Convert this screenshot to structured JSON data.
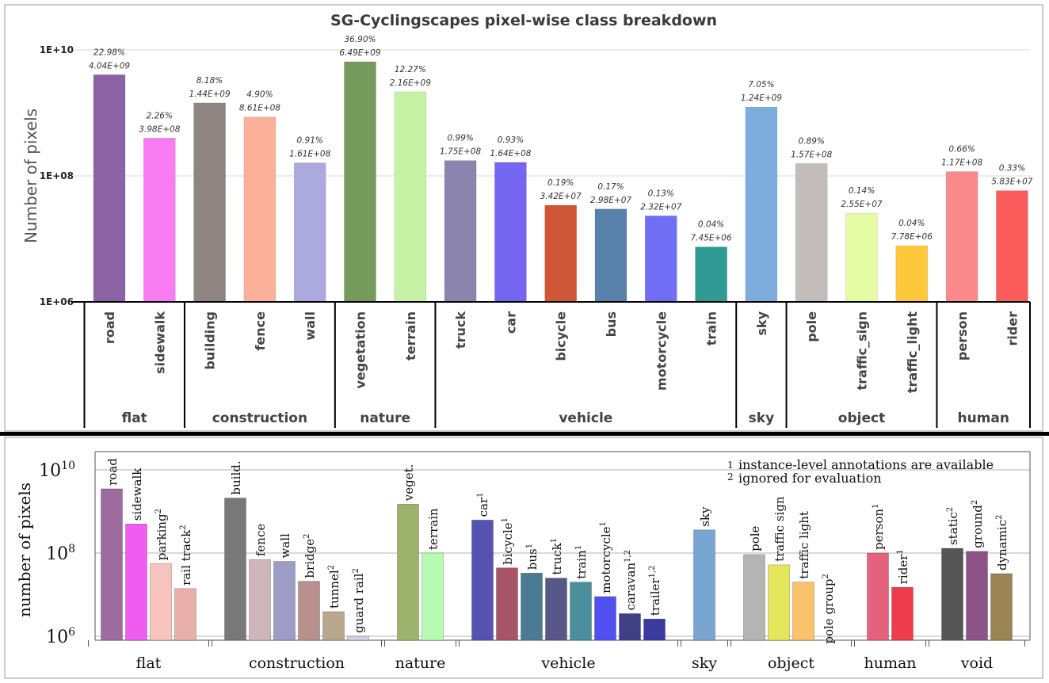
{
  "chart_data": [
    {
      "type": "bar",
      "title": "SG-Cyclingscapes pixel-wise class breakdown",
      "ylabel": "Number of pixels",
      "yscale": "log",
      "ylim": [
        1000000,
        10000000000
      ],
      "yticks": [
        {
          "value": 1000000,
          "label": "1E+06"
        },
        {
          "value": 100000000,
          "label": "1E+08"
        },
        {
          "value": 10000000000,
          "label": "1E+10"
        }
      ],
      "grid": true,
      "bars": [
        {
          "name": "road",
          "group": "flat",
          "value": 4040000000,
          "label": "4.04E+09",
          "percent": "22.98%",
          "color": "#8c64a6"
        },
        {
          "name": "sidewalk",
          "group": "flat",
          "value": 398000000,
          "label": "3.98E+08",
          "percent": "2.26%",
          "color": "#f97cf2"
        },
        {
          "name": "building",
          "group": "construction",
          "value": 1440000000,
          "label": "1.44E+09",
          "percent": "8.18%",
          "color": "#8e8583"
        },
        {
          "name": "fence",
          "group": "construction",
          "value": 861000000,
          "label": "8.61E+08",
          "percent": "4.90%",
          "color": "#fbb09a"
        },
        {
          "name": "wall",
          "group": "construction",
          "value": 161000000,
          "label": "1.61E+08",
          "percent": "0.91%",
          "color": "#aba9de"
        },
        {
          "name": "vegetation",
          "group": "nature",
          "value": 6490000000,
          "label": "6.49E+09",
          "percent": "36.90%",
          "color": "#749a5c"
        },
        {
          "name": "terrain",
          "group": "nature",
          "value": 2160000000,
          "label": "2.16E+09",
          "percent": "12.27%",
          "color": "#c6f2a6"
        },
        {
          "name": "truck",
          "group": "vehicle",
          "value": 175000000,
          "label": "1.75E+08",
          "percent": "0.99%",
          "color": "#8a84ae"
        },
        {
          "name": "car",
          "group": "vehicle",
          "value": 164000000,
          "label": "1.64E+08",
          "percent": "0.93%",
          "color": "#7566f2"
        },
        {
          "name": "bicycle",
          "group": "vehicle",
          "value": 34200000,
          "label": "3.42E+07",
          "percent": "0.19%",
          "color": "#cf5736"
        },
        {
          "name": "bus",
          "group": "vehicle",
          "value": 29800000,
          "label": "2.98E+07",
          "percent": "0.17%",
          "color": "#5882ab"
        },
        {
          "name": "motorcycle",
          "group": "vehicle",
          "value": 23200000,
          "label": "2.32E+07",
          "percent": "0.13%",
          "color": "#6f6ef5"
        },
        {
          "name": "train",
          "group": "vehicle",
          "value": 7450000,
          "label": "7.45E+06",
          "percent": "0.04%",
          "color": "#2f9a93"
        },
        {
          "name": "sky",
          "group": "sky",
          "value": 1240000000,
          "label": "1.24E+09",
          "percent": "7.05%",
          "color": "#7eacdd"
        },
        {
          "name": "pole",
          "group": "object",
          "value": 157000000,
          "label": "1.57E+08",
          "percent": "0.89%",
          "color": "#c2bcba"
        },
        {
          "name": "traffic_sign",
          "group": "object",
          "value": 25500000,
          "label": "2.55E+07",
          "percent": "0.14%",
          "color": "#e6fca4"
        },
        {
          "name": "traffic_light",
          "group": "object",
          "value": 7780000,
          "label": "7.78E+06",
          "percent": "0.04%",
          "color": "#fdc83a"
        },
        {
          "name": "person",
          "group": "human",
          "value": 117000000,
          "label": "1.17E+08",
          "percent": "0.66%",
          "color": "#fd8a8a"
        },
        {
          "name": "rider",
          "group": "human",
          "value": 58300000,
          "label": "5.83E+07",
          "percent": "0.33%",
          "color": "#fc5c5c"
        }
      ],
      "groups": [
        "flat",
        "construction",
        "nature",
        "vehicle",
        "sky",
        "object",
        "human"
      ]
    },
    {
      "type": "bar",
      "title": "",
      "ylabel": "number of pixels",
      "yscale": "log",
      "ylim": [
        500000,
        30000000000
      ],
      "yticks": [
        {
          "value": 1000000,
          "label": "10",
          "exp": "6"
        },
        {
          "value": 100000000,
          "label": "10",
          "exp": "8"
        },
        {
          "value": 10000000000,
          "label": "10",
          "exp": "10"
        }
      ],
      "grid": true,
      "legend": {
        "position": "top-right",
        "entries": [
          {
            "mark": "1",
            "text": "instance-level annotations are available"
          },
          {
            "mark": "2",
            "text": "ignored for evaluation"
          }
        ]
      },
      "bars": [
        {
          "name": "road",
          "sup": "",
          "group": "flat",
          "value": 3500000000,
          "color": "#9e6b9f"
        },
        {
          "name": "sidewalk",
          "sup": "",
          "group": "flat",
          "value": 500000000,
          "color": "#f05cf0"
        },
        {
          "name": "parking",
          "sup": "2",
          "group": "flat",
          "value": 56000000,
          "color": "#f7c3bd"
        },
        {
          "name": "rail track",
          "sup": "2",
          "group": "flat",
          "value": 14000000,
          "color": "#e8afab"
        },
        {
          "name": "build.",
          "sup": "",
          "group": "construction",
          "value": 2100000000,
          "color": "#787878"
        },
        {
          "name": "fence",
          "sup": "",
          "group": "construction",
          "value": 70000000,
          "color": "#cfb6b8"
        },
        {
          "name": "wall",
          "sup": "",
          "group": "construction",
          "value": 63000000,
          "color": "#9c9cc4"
        },
        {
          "name": "bridge",
          "sup": "2",
          "group": "construction",
          "value": 21000000,
          "color": "#b8918f"
        },
        {
          "name": "tunnel",
          "sup": "2",
          "group": "construction",
          "value": 3900000,
          "color": "#b9a88e"
        },
        {
          "name": "guard rail",
          "sup": "2",
          "group": "construction",
          "value": 1000000,
          "color": "#d4cce0"
        },
        {
          "name": "veget.",
          "sup": "",
          "group": "nature",
          "value": 1500000000,
          "color": "#9cb36b"
        },
        {
          "name": "terrain",
          "sup": "",
          "group": "nature",
          "value": 100000000,
          "color": "#b7fbb3"
        },
        {
          "name": "car",
          "sup": "1",
          "group": "vehicle",
          "value": 620000000,
          "color": "#5454b0"
        },
        {
          "name": "bicycle",
          "sup": "1",
          "group": "vehicle",
          "value": 44000000,
          "color": "#a65466"
        },
        {
          "name": "bus",
          "sup": "1",
          "group": "vehicle",
          "value": 33000000,
          "color": "#4b7b93"
        },
        {
          "name": "truck",
          "sup": "1",
          "group": "vehicle",
          "value": 25000000,
          "color": "#57578a"
        },
        {
          "name": "train",
          "sup": "1",
          "group": "vehicle",
          "value": 20000000,
          "color": "#4a8f9b"
        },
        {
          "name": "motorcycle",
          "sup": "1",
          "group": "vehicle",
          "value": 9000000,
          "color": "#5050f0"
        },
        {
          "name": "caravan",
          "sup": "1,2",
          "group": "vehicle",
          "value": 3500000,
          "color": "#3f3f86"
        },
        {
          "name": "trailer",
          "sup": "1,2",
          "group": "vehicle",
          "value": 2600000,
          "color": "#3a3aa0"
        },
        {
          "name": "sky",
          "sup": "",
          "group": "sky",
          "value": 360000000,
          "color": "#78a6d1"
        },
        {
          "name": "pole",
          "sup": "",
          "group": "object",
          "value": 92000000,
          "color": "#b4b4b4"
        },
        {
          "name": "traffic sign",
          "sup": "",
          "group": "object",
          "value": 52000000,
          "color": "#e6e65a"
        },
        {
          "name": "traffic light",
          "sup": "",
          "group": "object",
          "value": 20000000,
          "color": "#fbc26c"
        },
        {
          "name": "pole group",
          "sup": "2",
          "group": "object",
          "value": 550000,
          "color": "#d6d6d6"
        },
        {
          "name": "person",
          "sup": "1",
          "group": "human",
          "value": 100000000,
          "color": "#e4627c"
        },
        {
          "name": "rider",
          "sup": "1",
          "group": "human",
          "value": 15000000,
          "color": "#ee3c4c"
        },
        {
          "name": "static",
          "sup": "2",
          "group": "void",
          "value": 130000000,
          "color": "#555555"
        },
        {
          "name": "ground",
          "sup": "2",
          "group": "void",
          "value": 110000000,
          "color": "#8c5388"
        },
        {
          "name": "dynamic",
          "sup": "2",
          "group": "void",
          "value": 32000000,
          "color": "#9a8454"
        }
      ],
      "groups": [
        "flat",
        "construction",
        "nature",
        "vehicle",
        "sky",
        "object",
        "human",
        "void"
      ]
    }
  ]
}
